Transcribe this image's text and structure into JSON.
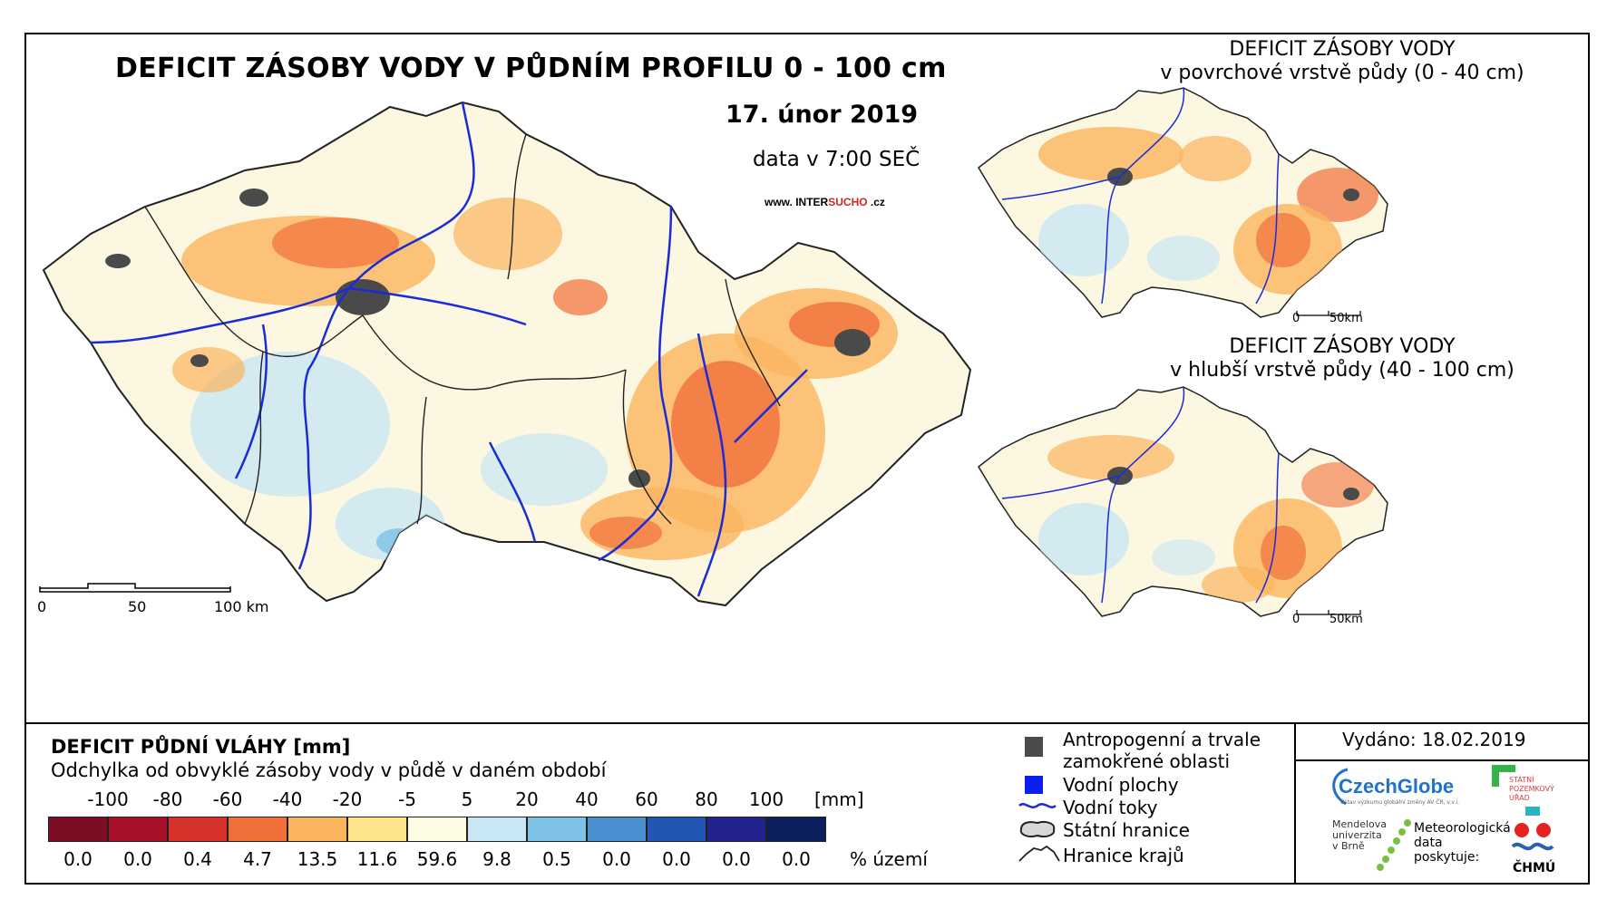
{
  "main": {
    "title": "DEFICIT ZÁSOBY VODY V PŮDNÍM PROFILU 0 - 100 cm",
    "date": "17. únor 2019",
    "time": "data v 7:00 SEČ",
    "site_prefix": "www. INTER",
    "site_highlight": "SUCHO",
    "site_suffix": " .cz",
    "scalebar": [
      "0",
      "50",
      "100 km"
    ]
  },
  "inset_top": {
    "title_line1": "DEFICIT ZÁSOBY VODY",
    "title_line2": "v povrchové vrstvě půdy (0 - 40 cm)",
    "scalebar": [
      "0",
      "50km"
    ]
  },
  "inset_bottom": {
    "title_line1": "DEFICIT ZÁSOBY VODY",
    "title_line2": "v hlubší vrstvě půdy (40 - 100 cm)",
    "scalebar": [
      "0",
      "50km"
    ]
  },
  "legend": {
    "title": "DEFICIT PŮDNÍ VLÁHY [mm]",
    "subtitle": "Odchylka od obvyklé zásoby vody v půdě v daném období",
    "unit": "[mm]",
    "pct_unit": "% území",
    "breaks": [
      "-100",
      "-80",
      "-60",
      "-40",
      "-20",
      "-5",
      "5",
      "20",
      "40",
      "60",
      "80",
      "100"
    ],
    "classes": [
      {
        "color": "#7b0e22",
        "pct": "0.0"
      },
      {
        "color": "#a8112a",
        "pct": "0.0"
      },
      {
        "color": "#d6312a",
        "pct": "0.4"
      },
      {
        "color": "#f16f3b",
        "pct": "4.7"
      },
      {
        "color": "#fbb45e",
        "pct": "13.5"
      },
      {
        "color": "#fde48b",
        "pct": "11.6"
      },
      {
        "color": "#fefbe3",
        "pct": "59.6"
      },
      {
        "color": "#c9e6f4",
        "pct": "9.8"
      },
      {
        "color": "#7ec3e6",
        "pct": "0.5"
      },
      {
        "color": "#4a90d0",
        "pct": "0.0"
      },
      {
        "color": "#2256b5",
        "pct": "0.0"
      },
      {
        "color": "#23238f",
        "pct": "0.0"
      },
      {
        "color": "#0d1f5e",
        "pct": "0.0"
      }
    ]
  },
  "symbols": {
    "anthropogenic_line1": "Antropogenní a trvale",
    "anthropogenic_line2": "zamokřené oblasti",
    "water_bodies": "Vodní plochy",
    "rivers": "Vodní toky",
    "state_border": "Státní hranice",
    "region_border": "Hranice krajů"
  },
  "credits": {
    "issued": "Vydáno: 18.02.2019",
    "czechglobe": "CzechGlobe",
    "czechglobe_sub": "Ústav výzkumu globální změny AV ČR, v.v.i.",
    "spu_line1": "STÁTNÍ",
    "spu_line2": "POZEMKOVÝ",
    "spu_line3": "ÚŘAD",
    "mendel_line1": "Mendelova",
    "mendel_line2": "univerzita",
    "mendel_line3": "v Brně",
    "meteo_line1": "Meteorologická",
    "meteo_line2": "data",
    "meteo_line3": "poskytuje:",
    "chmu": "ČHMÚ"
  },
  "colors": {
    "river": "#1a2cd6",
    "anthropogenic": "#4a4a4a",
    "land": "#fbf7e0"
  }
}
